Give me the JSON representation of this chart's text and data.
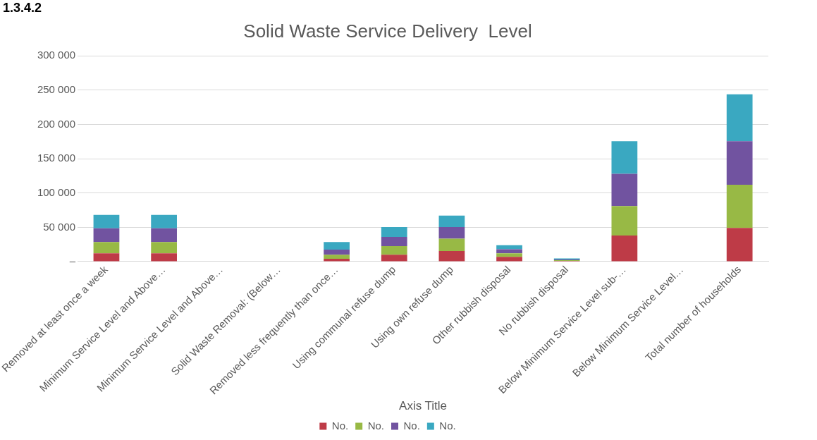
{
  "chart_data": {
    "type": "bar",
    "title": "Solid Waste Service Delivery  Level",
    "xlabel": "Axis Title",
    "annotations": [
      "1.3.4.2"
    ],
    "categories": [
      "Removed at least once a week",
      "Minimum Service Level and Above…",
      "Minimum Service Level and Above…",
      "Solid Waste Removal: (Below…",
      "Removed less frequently than once…",
      "Using communal refuse dump",
      "Using own refuse dump",
      "Other rubbish disposal",
      "No rubbish disposal",
      "Below Minimum Service Level sub-…",
      "Below Minimum Service Level…",
      "Total number of households"
    ],
    "stacked": true,
    "series": [
      {
        "name": "No.",
        "color": "#be3b47",
        "values": [
          12000,
          12000,
          0,
          0,
          4000,
          10000,
          15500,
          7000,
          1000,
          38000,
          0,
          49000
        ]
      },
      {
        "name": "No.",
        "color": "#98b945",
        "values": [
          16500,
          16500,
          0,
          0,
          6000,
          12500,
          18000,
          5000,
          1000,
          43000,
          0,
          63000
        ]
      },
      {
        "name": "No.",
        "color": "#7153a0",
        "values": [
          20000,
          20000,
          0,
          0,
          7500,
          13500,
          17000,
          6000,
          1000,
          47000,
          0,
          63500
        ]
      },
      {
        "name": "No.",
        "color": "#3aa8c1",
        "values": [
          19500,
          19500,
          0,
          0,
          11000,
          14500,
          16500,
          6000,
          1500,
          47500,
          0,
          68500
        ]
      }
    ],
    "ylim": [
      0,
      300000
    ],
    "yticks": [
      {
        "value": 0,
        "label": "–"
      },
      {
        "value": 50000,
        "label": "50 000"
      },
      {
        "value": 100000,
        "label": "100 000"
      },
      {
        "value": 150000,
        "label": "150 000"
      },
      {
        "value": 200000,
        "label": "200 000"
      },
      {
        "value": 250000,
        "label": "250 000"
      },
      {
        "value": 300000,
        "label": "300 000"
      }
    ],
    "grid": "y",
    "legend": "bottom"
  }
}
